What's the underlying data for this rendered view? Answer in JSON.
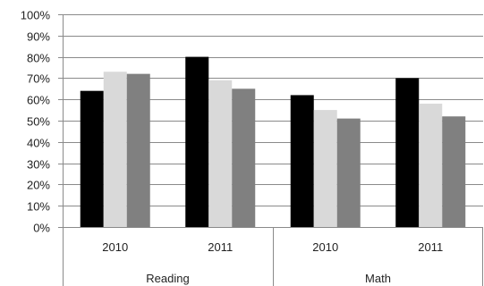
{
  "chart_data": {
    "type": "bar",
    "groups": [
      {
        "label": "Reading",
        "categories": [
          "2010",
          "2011"
        ]
      },
      {
        "label": "Math",
        "categories": [
          "2010",
          "2011"
        ]
      }
    ],
    "categories": [
      "2010",
      "2011",
      "2010",
      "2011"
    ],
    "series": [
      {
        "values": [
          0.64,
          0.8,
          0.62,
          0.7
        ],
        "color": "#000000"
      },
      {
        "values": [
          0.73,
          0.69,
          0.55,
          0.58
        ],
        "color": "#d9d9d9"
      },
      {
        "values": [
          0.72,
          0.65,
          0.51,
          0.52
        ],
        "color": "#808080"
      }
    ],
    "ylim": [
      0,
      1
    ],
    "yticks": [
      "0%",
      "10%",
      "20%",
      "30%",
      "40%",
      "50%",
      "60%",
      "70%",
      "80%",
      "90%",
      "100%"
    ],
    "grid": true,
    "legend": "none"
  }
}
